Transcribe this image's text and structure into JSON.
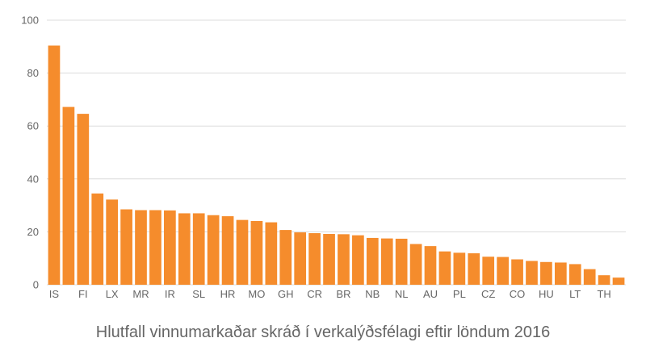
{
  "chart_data": {
    "type": "bar",
    "title": "Hlutfall vinnumarkaðar skráð í verkalýðsfélagi eftir löndum 2016",
    "xlabel": "",
    "ylabel": "",
    "ylim": [
      0,
      100
    ],
    "yticks": [
      0,
      20,
      40,
      60,
      80,
      100
    ],
    "grid": true,
    "legend": "none",
    "bar_color": "#f58c2c",
    "categories": [
      "IS",
      "",
      "FI",
      "",
      "LX",
      "",
      "MR",
      "",
      "IR",
      "",
      "SL",
      "",
      "HR",
      "",
      "MO",
      "",
      "GH",
      "",
      "CR",
      "",
      "BR",
      "",
      "NB",
      "",
      "NL",
      "",
      "AU",
      "",
      "PL",
      "",
      "CZ",
      "",
      "CO",
      "",
      "HU",
      "",
      "LT",
      "",
      "TH",
      ""
    ],
    "values": [
      90.4,
      67.2,
      64.6,
      34.5,
      32.2,
      28.5,
      28.2,
      28.2,
      28.1,
      27.0,
      27.0,
      26.3,
      25.9,
      24.5,
      24.1,
      23.6,
      20.7,
      19.8,
      19.5,
      19.2,
      19.1,
      18.7,
      17.7,
      17.5,
      17.4,
      15.4,
      14.6,
      12.6,
      12.1,
      11.9,
      10.6,
      10.5,
      9.6,
      9.0,
      8.6,
      8.4,
      7.8,
      5.9,
      3.6,
      2.7
    ]
  }
}
